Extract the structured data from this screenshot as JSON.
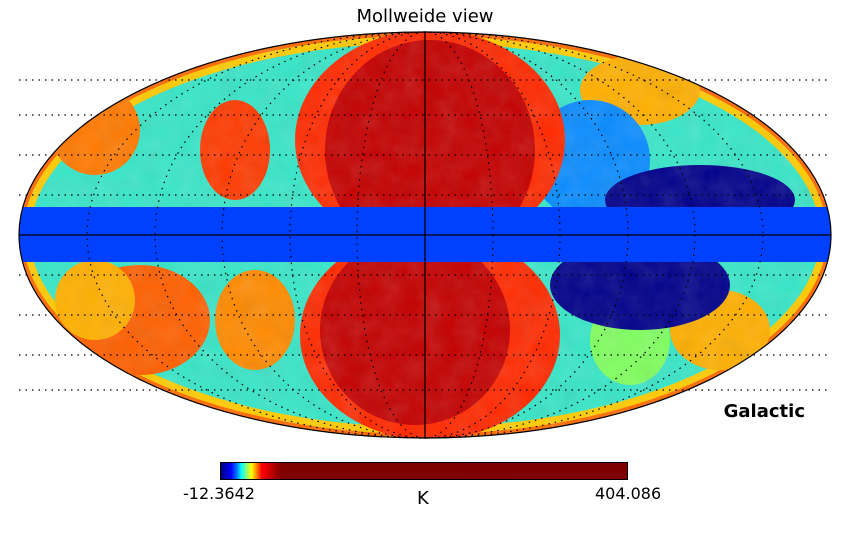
{
  "title": "Mollweide view",
  "coord_system": "Galactic",
  "colorbar": {
    "min_label": "-12.3642",
    "max_label": "404.086",
    "unit": "K",
    "colormap": "jet"
  },
  "colors": {
    "dark_blue": "#00008b",
    "mask_blue": "#0040ff",
    "red": "#ff0000",
    "dark_red": "#8b0000",
    "cyan": "#00ffff",
    "yellow": "#ffff00"
  }
}
